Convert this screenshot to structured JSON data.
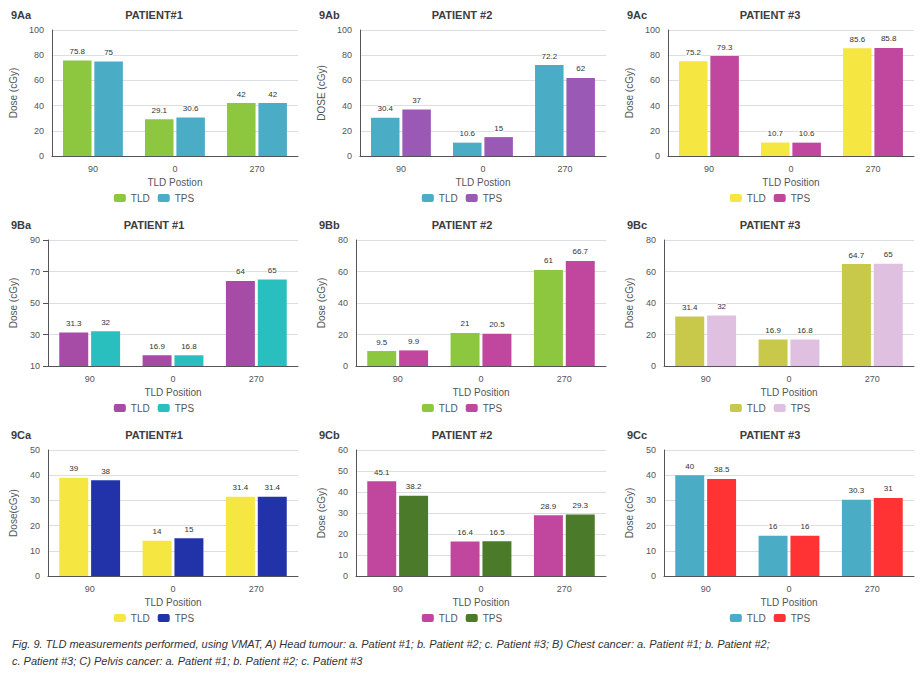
{
  "chart_data": [
    {
      "type": "bar",
      "title": "PATIENT#1",
      "annotations": [
        "9Aa"
      ],
      "xlabel": "TLD Postion",
      "ylabel": "Dose (cGy)",
      "categories": [
        "90",
        "0",
        "270"
      ],
      "series": [
        {
          "name": "TLD",
          "color": "#8DC63F",
          "values": [
            75.8,
            29.1,
            42
          ]
        },
        {
          "name": "TPS",
          "color": "#4BACC6",
          "values": [
            75,
            30.6,
            42
          ]
        }
      ],
      "ylim": [
        0,
        100
      ],
      "yticks": [
        0,
        20,
        40,
        60,
        80,
        100
      ],
      "grid": true,
      "data_labels": true,
      "legend": "bottom"
    },
    {
      "type": "bar",
      "title": "PATIENT #2",
      "annotations": [
        "9Ab"
      ],
      "xlabel": "TLD Postion",
      "ylabel": "DOSE (cGy)",
      "categories": [
        "90",
        "0",
        "270"
      ],
      "series": [
        {
          "name": "TLD",
          "color": "#4BACC6",
          "values": [
            30.4,
            10.6,
            72.2
          ]
        },
        {
          "name": "TPS",
          "color": "#9B59B6",
          "values": [
            37,
            15,
            62
          ]
        }
      ],
      "ylim": [
        0,
        100
      ],
      "yticks": [
        0,
        20,
        40,
        60,
        80,
        100
      ],
      "grid": true,
      "data_labels": true,
      "legend": "bottom"
    },
    {
      "type": "bar",
      "title": "PATIENT #3",
      "annotations": [
        "9Ac"
      ],
      "xlabel": "TLD Position",
      "ylabel": "Dose (cGy)",
      "categories": [
        "90",
        "0",
        "270"
      ],
      "series": [
        {
          "name": "TLD",
          "color": "#F5E642",
          "values": [
            75.2,
            10.7,
            85.6
          ]
        },
        {
          "name": "TPS",
          "color": "#C0479D",
          "values": [
            79.3,
            10.6,
            85.8
          ]
        }
      ],
      "ylim": [
        0,
        100
      ],
      "yticks": [
        0,
        20,
        40,
        60,
        80,
        100
      ],
      "grid": true,
      "data_labels": true,
      "legend": "bottom"
    },
    {
      "type": "bar",
      "title": "PATIENT #1",
      "annotations": [
        "9Ba"
      ],
      "xlabel": "TLD Position",
      "ylabel": "Dose (cGy)",
      "categories": [
        "90",
        "0",
        "270"
      ],
      "series": [
        {
          "name": "TLD",
          "color": "#A64CA6",
          "values": [
            31.3,
            16.9,
            64
          ]
        },
        {
          "name": "TPS",
          "color": "#2ABFBF",
          "values": [
            32,
            16.8,
            65
          ]
        }
      ],
      "ylim": [
        10,
        90
      ],
      "yticks": [
        10,
        30,
        50,
        70,
        90
      ],
      "grid": true,
      "data_labels": true,
      "legend": "bottom"
    },
    {
      "type": "bar",
      "title": "PATIENT #2",
      "annotations": [
        "9Bb"
      ],
      "xlabel": "TLD Position",
      "ylabel": "Dose (cGy)",
      "categories": [
        "90",
        "0",
        "270"
      ],
      "series": [
        {
          "name": "TLD",
          "color": "#8DC63F",
          "values": [
            9.5,
            21,
            61
          ]
        },
        {
          "name": "TPS",
          "color": "#C0479D",
          "values": [
            9.9,
            20.5,
            66.7
          ]
        }
      ],
      "ylim": [
        0,
        80
      ],
      "yticks": [
        0,
        20,
        40,
        60,
        80
      ],
      "grid": true,
      "data_labels": true,
      "legend": "bottom"
    },
    {
      "type": "bar",
      "title": "PATIENT #3",
      "annotations": [
        "9Bc"
      ],
      "xlabel": "TLD Position",
      "ylabel": "Dose (cGy)",
      "categories": [
        "90",
        "0",
        "270"
      ],
      "series": [
        {
          "name": "TLD",
          "color": "#C8C84A",
          "values": [
            31.4,
            16.9,
            64.7
          ]
        },
        {
          "name": "TPS",
          "color": "#E0C0E0",
          "values": [
            32,
            16.8,
            65
          ]
        }
      ],
      "ylim": [
        0,
        80
      ],
      "yticks": [
        0,
        20,
        40,
        60,
        80
      ],
      "grid": true,
      "data_labels": true,
      "legend": "bottom"
    },
    {
      "type": "bar",
      "title": "PATIENT#1",
      "annotations": [
        "9Ca"
      ],
      "xlabel": "TLD Position",
      "ylabel": "Dose(cGy)",
      "categories": [
        "90",
        "0",
        "270"
      ],
      "series": [
        {
          "name": "TLD",
          "color": "#F5E642",
          "values": [
            39,
            14,
            31.4
          ]
        },
        {
          "name": "TPS",
          "color": "#2233AA",
          "values": [
            38,
            15,
            31.4
          ]
        }
      ],
      "ylim": [
        0,
        50
      ],
      "yticks": [
        0,
        10,
        20,
        30,
        40,
        50
      ],
      "grid": true,
      "data_labels": true,
      "legend": "bottom"
    },
    {
      "type": "bar",
      "title": "PATIENT #2",
      "annotations": [
        "9Cb"
      ],
      "xlabel": "TLD Position",
      "ylabel": "Dose (cGy)",
      "categories": [
        "90",
        "0",
        "270"
      ],
      "series": [
        {
          "name": "TLD",
          "color": "#C0479D",
          "values": [
            45.1,
            16.4,
            28.9
          ]
        },
        {
          "name": "TPS",
          "color": "#4A7A2A",
          "values": [
            38.2,
            16.5,
            29.3
          ]
        }
      ],
      "ylim": [
        0,
        60
      ],
      "yticks": [
        0,
        10,
        20,
        30,
        40,
        50,
        60
      ],
      "grid": true,
      "data_labels": true,
      "legend": "bottom"
    },
    {
      "type": "bar",
      "title": "PATIENT #3",
      "annotations": [
        "9Cc"
      ],
      "xlabel": "TLD Position",
      "ylabel": "Dose (cGy)",
      "categories": [
        "90",
        "0",
        "270"
      ],
      "series": [
        {
          "name": "TLD",
          "color": "#4BACC6",
          "values": [
            40,
            16,
            30.3
          ]
        },
        {
          "name": "TPS",
          "color": "#FF3333",
          "values": [
            38.5,
            16,
            31
          ]
        }
      ],
      "ylim": [
        0,
        50
      ],
      "yticks": [
        0,
        10,
        20,
        30,
        40,
        50
      ],
      "grid": true,
      "data_labels": true,
      "legend": "bottom"
    }
  ],
  "annotations": [
    "Fig. 9. TLD measurements performed, using VMAT, A) Head tumour: a. Patient #1; b. Patient #2; c. Patient #3; B) Chest cancer: a. Patient #1; b. Patient #2;",
    "c. Patient #3; C) Pelvis cancer: a. Patient #1; b. Patient #2; c. Patient #3"
  ]
}
